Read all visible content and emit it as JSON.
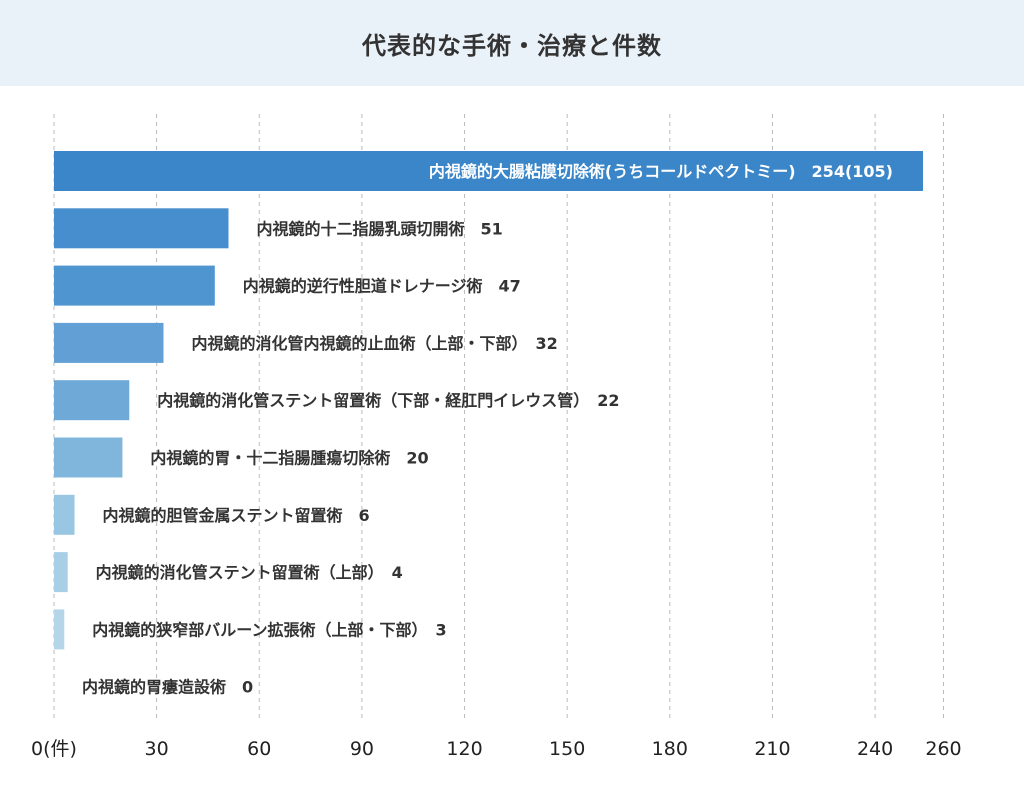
{
  "title": "代表的な手術・治療と件数",
  "chart_data": {
    "type": "bar",
    "orientation": "horizontal",
    "title": "代表的な手術・治療と件数",
    "xlim": [
      0,
      260
    ],
    "x_ticks": [
      {
        "value": 0,
        "label": "0(件)"
      },
      {
        "value": 30,
        "label": "30"
      },
      {
        "value": 60,
        "label": "60"
      },
      {
        "value": 90,
        "label": "90"
      },
      {
        "value": 120,
        "label": "120"
      },
      {
        "value": 150,
        "label": "150"
      },
      {
        "value": 180,
        "label": "180"
      },
      {
        "value": 210,
        "label": "210"
      },
      {
        "value": 240,
        "label": "240"
      },
      {
        "value": 260,
        "label": "260"
      }
    ],
    "grid": true,
    "categories": [
      "内視鏡的大腸粘膜切除術(うちコールドペクトミー)",
      "内視鏡的十二指腸乳頭切開術",
      "内視鏡的逆行性胆道ドレナージ術",
      "内視鏡的消化管内視鏡的止血術（上部・下部）",
      "内視鏡的消化管ステント留置術（下部・経肛門イレウス管）",
      "内視鏡的胃・十二指腸腫瘍切除術",
      "内視鏡的胆管金属ステント留置術",
      "内視鏡的消化管ステント留置術（上部）",
      "内視鏡的狭窄部バルーン拡張術（上部・下部）",
      "内視鏡的胃瘻造設術"
    ],
    "values": [
      254,
      51,
      47,
      32,
      22,
      20,
      6,
      4,
      3,
      0
    ],
    "value_labels": [
      "254(105)",
      "51",
      "47",
      "32",
      "22",
      "20",
      "6",
      "4",
      "3",
      "0"
    ],
    "colors": [
      "#3a86c8",
      "#468ecd",
      "#4f95d0",
      "#629fd4",
      "#6ea9d8",
      "#80b5dc",
      "#99c6e2",
      "#a8cfe6",
      "#b5d6e8",
      "#c4dfee"
    ],
    "grid_color": "#bbbbbb"
  }
}
